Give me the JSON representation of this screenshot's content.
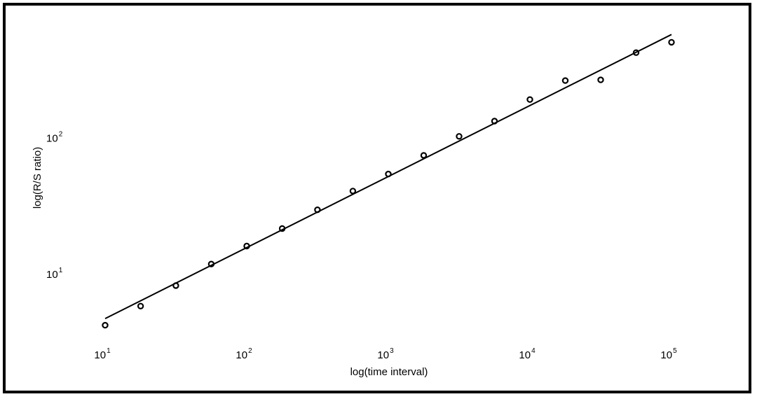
{
  "chart_data": {
    "type": "scatter",
    "xscale": "log",
    "yscale": "log",
    "xlim": [
      10,
      100000
    ],
    "ylim": [
      3.5,
      600
    ],
    "xlabel": "log(time interval)",
    "ylabel": "log(R/S ratio)",
    "x_ticks": [
      {
        "value": 10,
        "base": "10",
        "exp": "1"
      },
      {
        "value": 100,
        "base": "10",
        "exp": "2"
      },
      {
        "value": 1000,
        "base": "10",
        "exp": "3"
      },
      {
        "value": 10000,
        "base": "10",
        "exp": "4"
      },
      {
        "value": 100000,
        "base": "10",
        "exp": "5"
      }
    ],
    "y_ticks": [
      {
        "value": 10,
        "base": "10",
        "exp": "1"
      },
      {
        "value": 100,
        "base": "10",
        "exp": "2"
      }
    ],
    "grid": false,
    "legend": "none",
    "series": [
      {
        "kind": "markers",
        "marker": "open-circle",
        "color": "#000000",
        "x": [
          10,
          17.8,
          31.6,
          56.2,
          100,
          178,
          316,
          562,
          1000,
          1778,
          3162,
          5623,
          10000,
          17783,
          31623,
          56234,
          100000
        ],
        "y": [
          4.2,
          5.8,
          8.2,
          11.8,
          16.0,
          21.5,
          29.5,
          40.5,
          54.0,
          74.0,
          102,
          132,
          190,
          262,
          265,
          420,
          500
        ]
      },
      {
        "kind": "line",
        "color": "#000000",
        "x": [
          10,
          100000
        ],
        "y": [
          4.7,
          570
        ]
      }
    ]
  }
}
